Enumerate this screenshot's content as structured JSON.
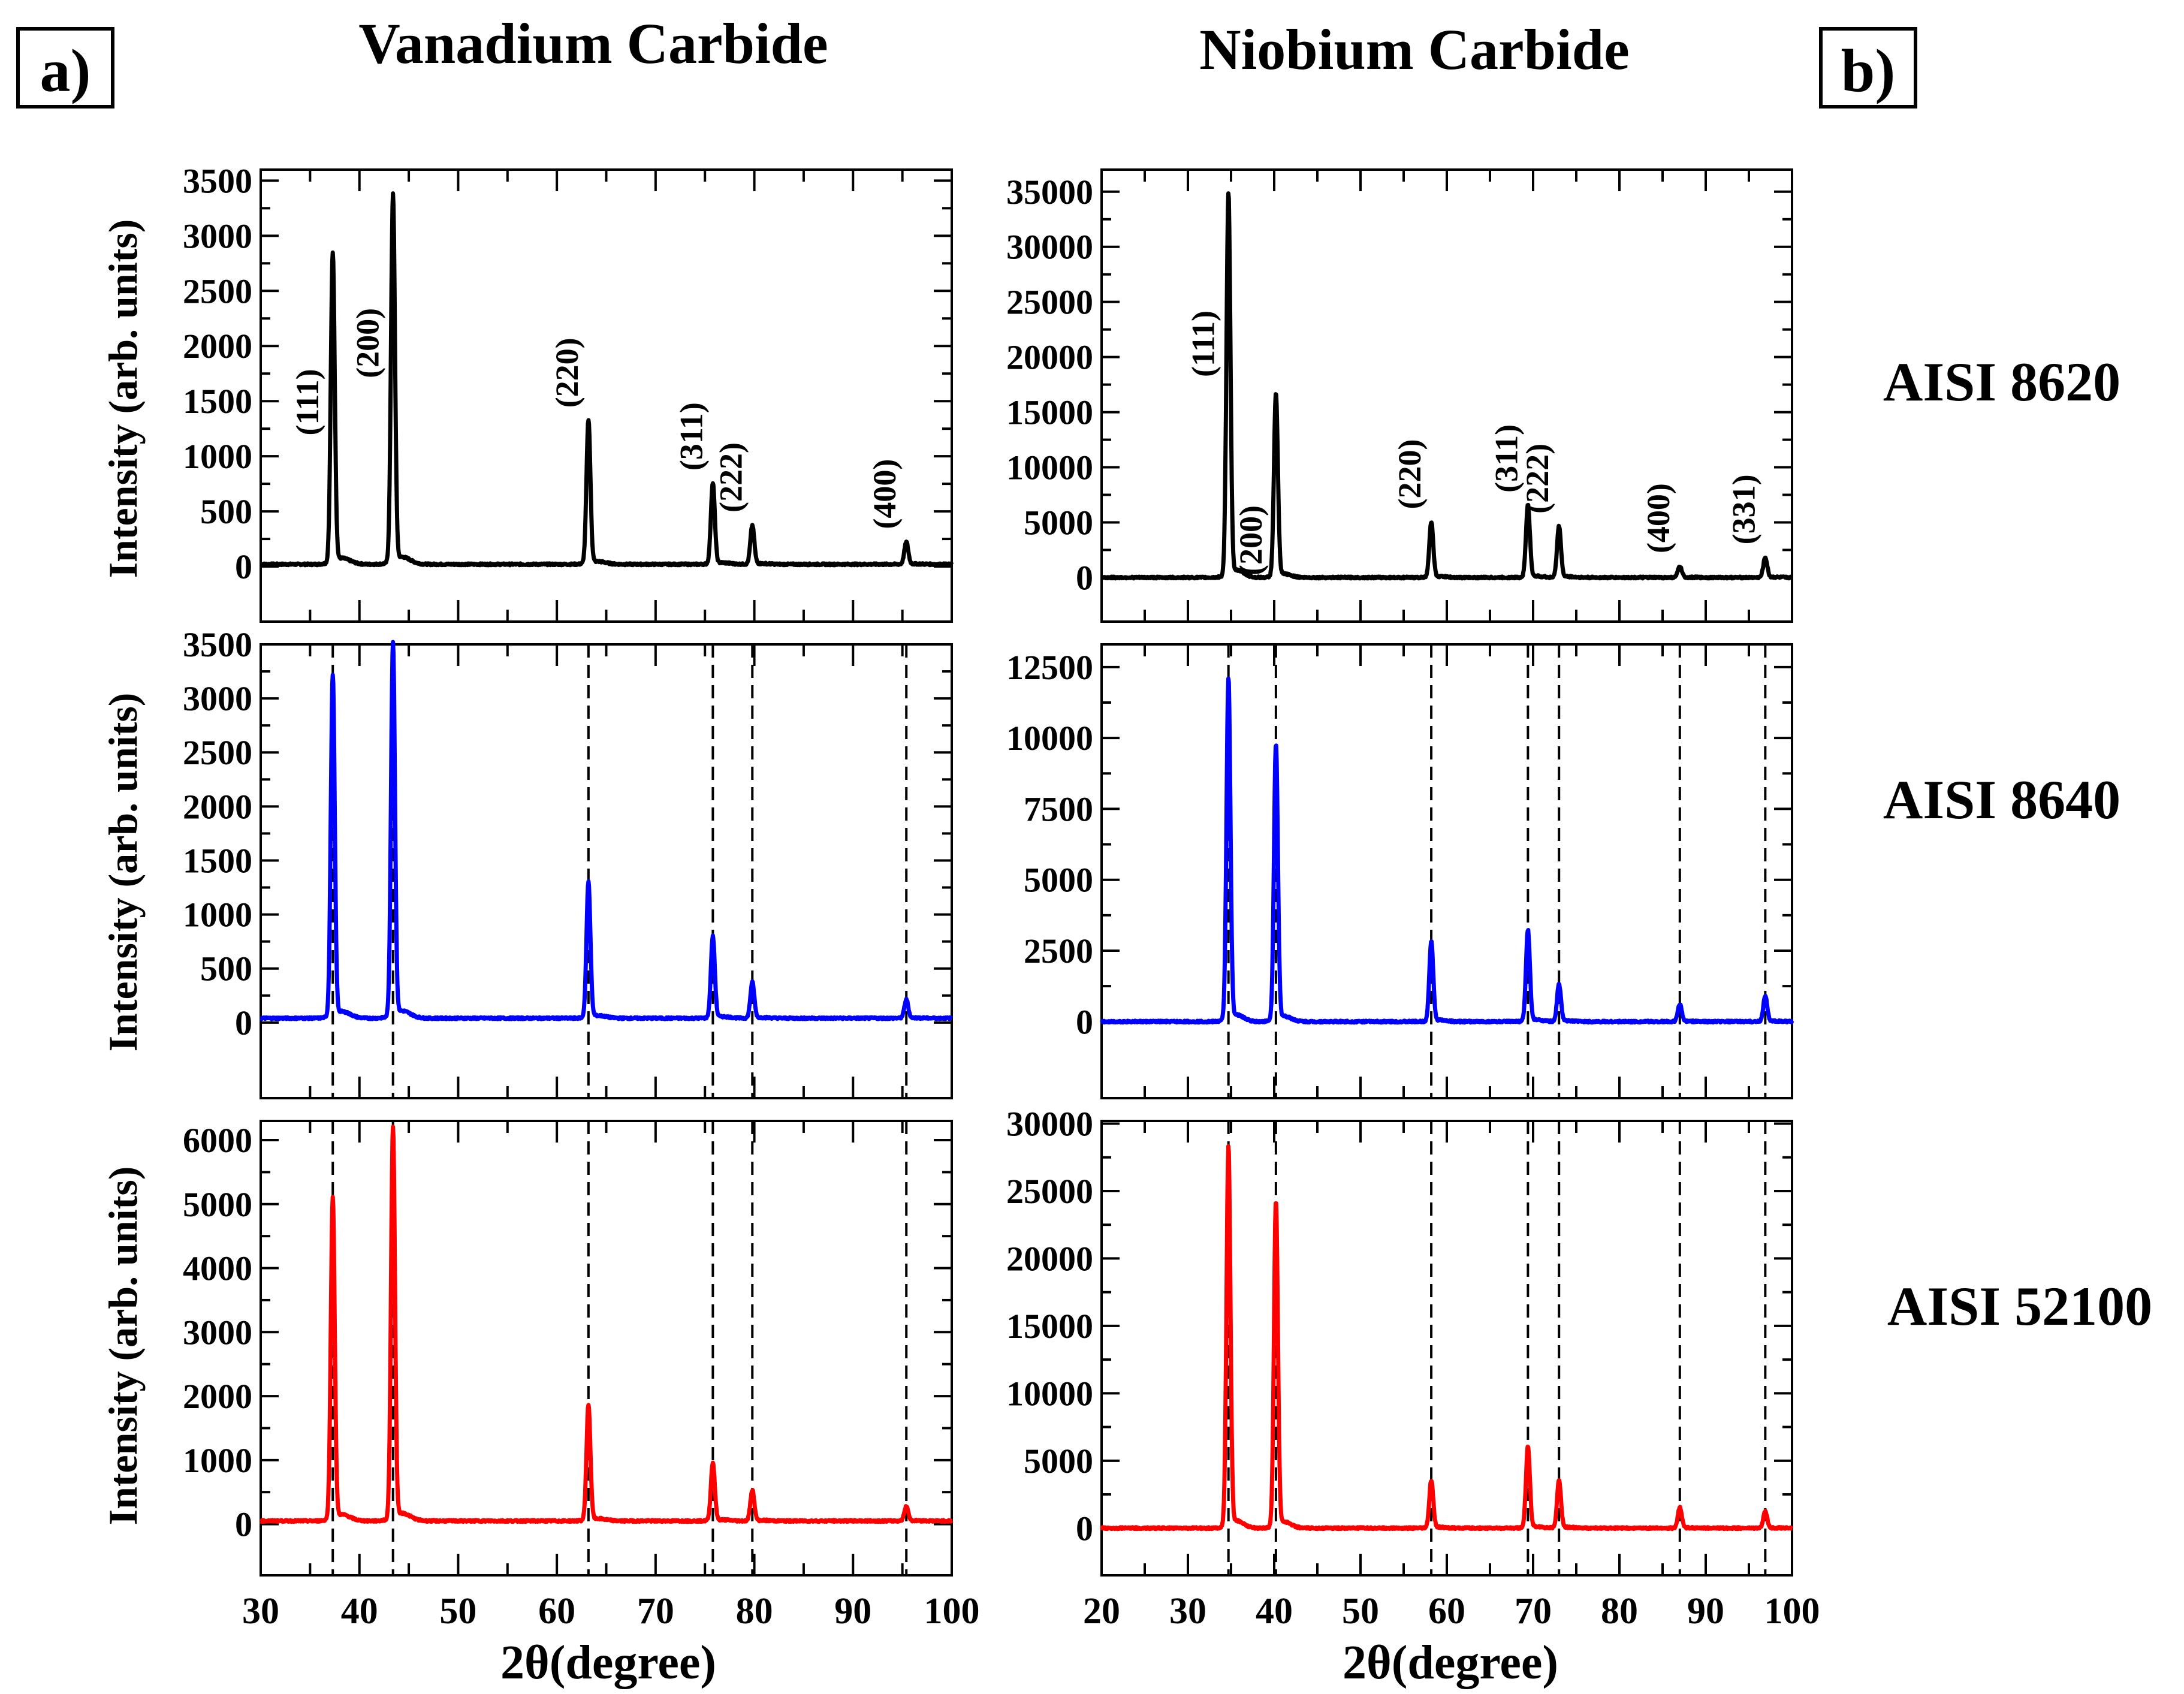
{
  "panel_labels": {
    "a": "a)",
    "b": "b)"
  },
  "titles": {
    "left": "Vanadium Carbide",
    "right": "Niobium Carbide"
  },
  "samples": [
    "AISI 8620",
    "AISI 8640",
    "AISI 52100"
  ],
  "axis": {
    "xlabel": "2θ(degree)",
    "ylabel": "Intensity (arb. units)"
  },
  "colors": {
    "AISI 8620": "#000000",
    "AISI 8640": "#0000ff",
    "AISI 52100": "#ff0000"
  },
  "chart_data": [
    {
      "type": "line",
      "title": "Vanadium Carbide",
      "panel": "a)",
      "xlabel": "2θ(degree)",
      "ylabel": "Intensity (arb. units)",
      "xlim": [
        30,
        100
      ],
      "xticks": [
        30,
        40,
        50,
        60,
        70,
        80,
        90,
        100
      ],
      "reflections": [
        {
          "hkl": "(111)",
          "two_theta": 37.3
        },
        {
          "hkl": "(200)",
          "two_theta": 43.4
        },
        {
          "hkl": "(220)",
          "two_theta": 63.2
        },
        {
          "hkl": "(311)",
          "two_theta": 75.8
        },
        {
          "hkl": "(222)",
          "two_theta": 79.8
        },
        {
          "hkl": "(400)",
          "two_theta": 95.4
        }
      ],
      "series": [
        {
          "name": "AISI 8620",
          "ylim": [
            -500,
            3600
          ],
          "yticks": [
            0,
            500,
            1000,
            1500,
            2000,
            2500,
            3000,
            3500
          ],
          "baseline": 20,
          "peaks": [
            2800,
            3320,
            1300,
            730,
            350,
            200
          ]
        },
        {
          "name": "AISI 8640",
          "ylim": [
            -700,
            3500
          ],
          "yticks": [
            0,
            500,
            1000,
            1500,
            2000,
            2500,
            3000,
            3500
          ],
          "baseline": 40,
          "peaks": [
            3150,
            3450,
            1250,
            750,
            330,
            170
          ]
        },
        {
          "name": "AISI 52100",
          "ylim": [
            -800,
            6300
          ],
          "yticks": [
            0,
            1000,
            2000,
            3000,
            4000,
            5000,
            6000
          ],
          "baseline": 50,
          "peaks": [
            5000,
            6100,
            1800,
            900,
            480,
            230
          ]
        }
      ]
    },
    {
      "type": "line",
      "title": "Niobium Carbide",
      "panel": "b)",
      "xlabel": "2θ(degree)",
      "ylabel": "",
      "xlim": [
        20,
        100
      ],
      "xticks": [
        20,
        30,
        40,
        50,
        60,
        70,
        80,
        90,
        100
      ],
      "reflections": [
        {
          "hkl": "(111)",
          "two_theta": 34.7
        },
        {
          "hkl": "(200)",
          "two_theta": 40.2
        },
        {
          "hkl": "(220)",
          "two_theta": 58.2
        },
        {
          "hkl": "(311)",
          "two_theta": 69.4
        },
        {
          "hkl": "(222)",
          "two_theta": 73.0
        },
        {
          "hkl": "(400)",
          "two_theta": 87.0
        },
        {
          "hkl": "(331)",
          "two_theta": 96.9
        }
      ],
      "series": [
        {
          "name": "AISI 8620",
          "ylim": [
            -4000,
            37000
          ],
          "yticks": [
            0,
            5000,
            10000,
            15000,
            20000,
            25000,
            30000,
            35000
          ],
          "baseline": 0,
          "peaks": [
            34500,
            16500,
            5000,
            6500,
            4600,
            1000,
            1800
          ]
        },
        {
          "name": "AISI 8640",
          "ylim": [
            -2700,
            13300
          ],
          "yticks": [
            0,
            2500,
            5000,
            7500,
            10000,
            12500
          ],
          "baseline": 0,
          "peaks": [
            12000,
            9700,
            2800,
            3200,
            1300,
            600,
            900
          ]
        },
        {
          "name": "AISI 52100",
          "ylim": [
            -3500,
            30200
          ],
          "yticks": [
            0,
            5000,
            10000,
            15000,
            20000,
            25000,
            30000
          ],
          "baseline": 0,
          "peaks": [
            28000,
            24000,
            3500,
            6000,
            3500,
            1500,
            1200
          ]
        }
      ]
    }
  ]
}
